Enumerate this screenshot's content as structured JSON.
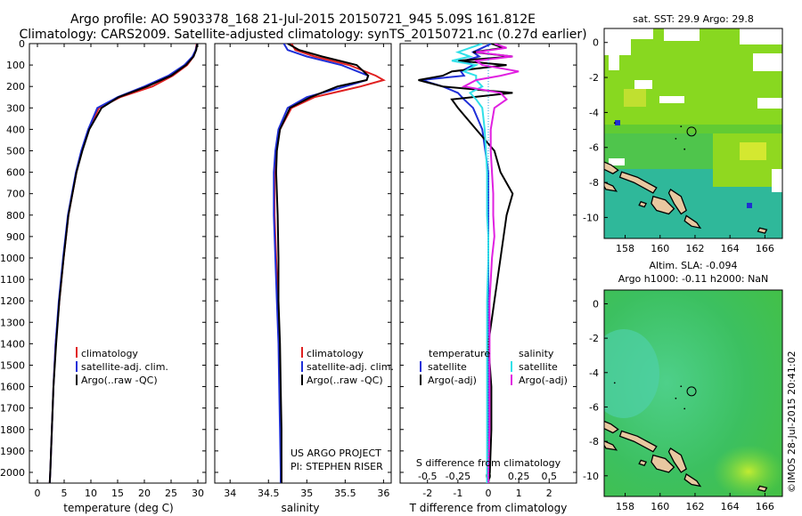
{
  "header": {
    "title_line1": "Argo profile: AO 5903378_168 21-Jul-2015 20150721_945 5.09S 161.812E",
    "title_line2": "Climatology: CARS2009. Satellite-adjusted climatology: synTS_20150721.nc (0.27d earlier)"
  },
  "colors": {
    "climatology": "#e02020",
    "satellite": "#1f2fd8",
    "argo": "#000000",
    "sat_salinity": "#30e0e8",
    "argo_salinity": "#e020e0"
  },
  "depth_axis": {
    "ticks": [
      "0",
      "100",
      "200",
      "300",
      "400",
      "500",
      "600",
      "700",
      "800",
      "900",
      "1000",
      "1100",
      "1200",
      "1300",
      "1400",
      "1500",
      "1600",
      "1700",
      "1800",
      "1900",
      "2000"
    ],
    "range": [
      0,
      2050
    ]
  },
  "chart_data": [
    {
      "type": "line",
      "id": "temperature",
      "xlabel": "temperature (deg C)",
      "ylabel": "depth",
      "xlim": [
        -1.5,
        31.5
      ],
      "ylim": [
        2050,
        0
      ],
      "xticks": [
        "0",
        "5",
        "10",
        "15",
        "20",
        "25",
        "30"
      ],
      "legend": {
        "position": "lower-middle",
        "entries": [
          "climatology",
          "satellite-adj. clim.",
          "Argo(..raw -QC)"
        ]
      },
      "depth": [
        0,
        30,
        60,
        100,
        150,
        200,
        250,
        300,
        400,
        500,
        600,
        800,
        1000,
        1200,
        1400,
        1600,
        1800,
        2000,
        2050
      ],
      "series": [
        {
          "name": "climatology",
          "color": "#e02020",
          "values": [
            29.8,
            29.6,
            29.2,
            28.0,
            25.3,
            21.5,
            15.5,
            11.5,
            9.6,
            8.3,
            7.3,
            5.8,
            4.9,
            4.1,
            3.4,
            3.0,
            2.7,
            2.4,
            2.3
          ]
        },
        {
          "name": "satellite-adj. clim.",
          "color": "#1f2fd8",
          "values": [
            29.9,
            29.6,
            29.0,
            27.5,
            24.5,
            20.0,
            15.0,
            11.2,
            9.5,
            8.2,
            7.2,
            5.7,
            4.8,
            4.0,
            3.4,
            3.0,
            2.7,
            2.4,
            2.3
          ]
        },
        {
          "name": "Argo(..raw -QC)",
          "color": "#000000",
          "values": [
            29.9,
            29.7,
            29.2,
            27.8,
            25.0,
            20.5,
            15.2,
            12.0,
            9.7,
            8.4,
            7.3,
            5.8,
            4.9,
            4.1,
            3.5,
            3.0,
            2.7,
            2.4,
            2.3
          ]
        }
      ]
    },
    {
      "type": "line",
      "id": "salinity",
      "xlabel": "salinity",
      "xlim": [
        33.8,
        36.1
      ],
      "ylim": [
        2050,
        0
      ],
      "xticks": [
        "34",
        "34.5",
        "35",
        "35.5",
        "36"
      ],
      "legend": {
        "position": "lower-middle",
        "entries": [
          "climatology",
          "satellite-adj. clim.",
          "Argo(..raw -QC)"
        ]
      },
      "annotation": [
        "US ARGO PROJECT",
        "PI: STEPHEN RISER"
      ],
      "depth": [
        0,
        30,
        60,
        100,
        150,
        170,
        200,
        250,
        300,
        400,
        500,
        600,
        800,
        1000,
        1200,
        1400,
        1600,
        1800,
        2000,
        2050
      ],
      "series": [
        {
          "name": "climatology",
          "color": "#e02020",
          "values": [
            34.8,
            34.85,
            35.1,
            35.55,
            35.9,
            36.0,
            35.7,
            35.1,
            34.8,
            34.65,
            34.6,
            34.58,
            34.58,
            34.6,
            34.62,
            34.64,
            34.65,
            34.66,
            34.67,
            34.67
          ]
        },
        {
          "name": "satellite-adj. clim.",
          "color": "#1f2fd8",
          "values": [
            34.7,
            34.75,
            35.0,
            35.45,
            35.8,
            35.78,
            35.5,
            35.0,
            34.75,
            34.63,
            34.59,
            34.57,
            34.57,
            34.59,
            34.61,
            34.63,
            34.64,
            34.65,
            34.66,
            34.66
          ]
        },
        {
          "name": "Argo(..raw -QC)",
          "color": "#000000",
          "values": [
            34.75,
            34.9,
            35.2,
            35.65,
            35.8,
            35.78,
            35.4,
            35.05,
            34.78,
            34.65,
            34.61,
            34.6,
            34.62,
            34.63,
            34.63,
            34.65,
            34.66,
            34.67,
            34.67,
            34.67
          ]
        }
      ]
    },
    {
      "type": "line",
      "id": "difference",
      "xlabel": "T difference from climatology",
      "xlabel_top": "S difference from climatology",
      "t_xlim": [
        -2.9,
        2.9
      ],
      "t_xticks": [
        "-2",
        "-1",
        "0",
        "1",
        "2"
      ],
      "s_xlim": [
        -0.725,
        0.725
      ],
      "s_xticks": [
        "-0.5",
        "-0.25",
        "0",
        "0.25",
        "0.5"
      ],
      "ylim": [
        2050,
        0
      ],
      "legend": {
        "position": "lower-middle",
        "temperature_header": "temperature",
        "salinity_header": "salinity",
        "entries": [
          "satellite",
          "Argo(-adj)",
          "satellite",
          "Argo(-adj)"
        ]
      },
      "depth": [
        0,
        20,
        40,
        60,
        80,
        100,
        130,
        150,
        170,
        200,
        230,
        260,
        300,
        400,
        500,
        600,
        700,
        800,
        900,
        1000,
        1200,
        1400,
        1600,
        1800,
        2000,
        2050
      ],
      "series": [
        {
          "name": "temperature satellite",
          "color": "#1f2fd8",
          "values": [
            0.1,
            -0.2,
            -0.5,
            -0.3,
            -0.8,
            -0.5,
            -0.9,
            -0.8,
            -2.2,
            -1.5,
            -1.0,
            -0.8,
            -0.5,
            -0.2,
            -0.1,
            0.0,
            0.0,
            0.0,
            0.0,
            0.0,
            0.0,
            0.0,
            0.0,
            0.0,
            0.0,
            0.0
          ]
        },
        {
          "name": "temperature Argo(-adj)",
          "color": "#000000",
          "values": [
            0.1,
            0.5,
            -0.5,
            0.8,
            -1.0,
            0.6,
            -1.2,
            -1.5,
            -2.3,
            -1.5,
            0.8,
            -1.2,
            -1.0,
            -0.4,
            0.2,
            0.4,
            0.8,
            0.6,
            0.5,
            0.4,
            0.2,
            0.0,
            0.1,
            0.1,
            0.05,
            0.0
          ]
        },
        {
          "name": "salinity satellite",
          "color": "#30e0e8",
          "values": [
            -0.05,
            -0.15,
            -0.25,
            -0.15,
            -0.3,
            -0.1,
            -0.2,
            -0.1,
            -0.1,
            -0.05,
            -0.15,
            -0.1,
            -0.05,
            -0.03,
            -0.02,
            -0.01,
            -0.01,
            -0.01,
            0.0,
            0.0,
            -0.01,
            -0.01,
            -0.01,
            -0.01,
            -0.01,
            -0.01
          ]
        },
        {
          "name": "salinity Argo(-adj)",
          "color": "#e020e0",
          "values": [
            0.05,
            0.15,
            -0.1,
            0.2,
            -0.1,
            -0.05,
            0.25,
            0.1,
            -0.1,
            -0.2,
            0.1,
            0.15,
            0.05,
            0.02,
            0.02,
            0.03,
            0.04,
            0.04,
            0.05,
            0.03,
            0.01,
            0.01,
            0.01,
            0.01,
            0.0,
            0.0
          ]
        }
      ]
    }
  ],
  "map_sst": {
    "title": "sat. SST: 29.9 Argo: 29.8",
    "xticks": [
      "158",
      "160",
      "162",
      "164",
      "166"
    ],
    "yticks": [
      "0",
      "-2",
      "-4",
      "-6",
      "-8",
      "-10"
    ],
    "xlim": [
      156.8,
      167.0
    ],
    "ylim": [
      -11.2,
      0.8
    ],
    "argo_lon": 161.8,
    "argo_lat": -5.09
  },
  "map_sla": {
    "title_line1": "Altim. SLA: -0.094",
    "title_line2": "Argo h1000: -0.11 h2000: NaN",
    "xticks": [
      "158",
      "160",
      "162",
      "164",
      "166"
    ],
    "yticks": [
      "0",
      "-2",
      "-4",
      "-6",
      "-8",
      "-10"
    ],
    "xlim": [
      156.8,
      167.0
    ],
    "ylim": [
      -11.2,
      0.8
    ],
    "argo_lon": 161.8,
    "argo_lat": -5.09
  },
  "credit": "©IMOS 28-Jul-2015 20:41:02"
}
